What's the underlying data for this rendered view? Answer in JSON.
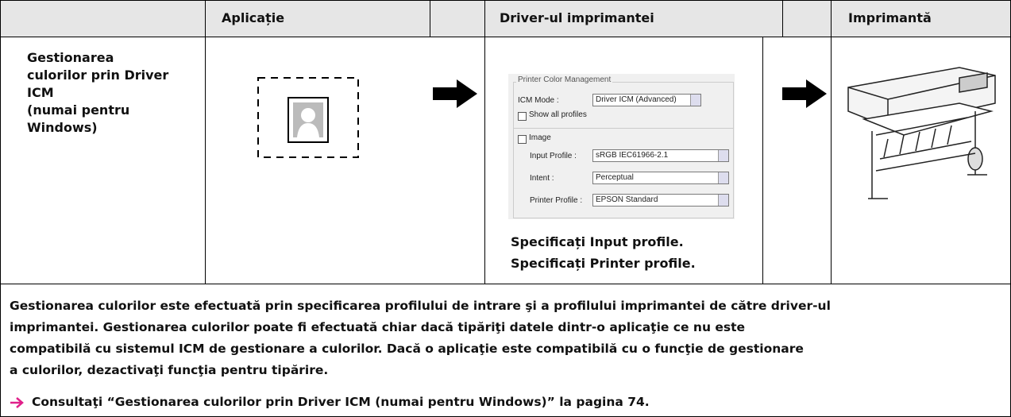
{
  "header": {
    "col1": "Aplicație",
    "col2": "Driver-ul imprimantei",
    "col3": "Imprimantă"
  },
  "row": {
    "label": [
      "Gestionarea",
      "culorilor prin Driver",
      "ICM",
      "(numai pentru",
      "Windows)"
    ],
    "dialog": {
      "group": "Printer Color Management",
      "icm_mode_label": "ICM Mode :",
      "icm_mode_value": "Driver ICM (Advanced)",
      "show_all": "Show all profiles",
      "image": "Image",
      "input_label": "Input Profile :",
      "input_value": "sRGB IEC61966-2.1",
      "intent_label": "Intent :",
      "intent_value": "Perceptual",
      "printer_label": "Printer Profile :",
      "printer_value": "EPSON Standard"
    },
    "captions": [
      "Specificați Input profile.",
      "Specificați Printer profile."
    ]
  },
  "description": [
    "Gestionarea culorilor este efectuată prin specificarea profilului de intrare şi a profilului imprimantei de către driver-ul",
    "imprimantei. Gestionarea culorilor poate fi efectuată chiar dacă tipăriţi datele dintr-o aplicaţie ce nu este",
    "compatibilă cu sistemul ICM de gestionare a culorilor. Dacă o aplicaţie este compatibilă cu o funcţie de gestionare",
    "a culorilor, dezactivaţi funcţia pentru tipărire."
  ],
  "link": "Consultaţi “Gestionarea culorilor prin Driver ICM (numai pentru Windows)” la pagina 74."
}
